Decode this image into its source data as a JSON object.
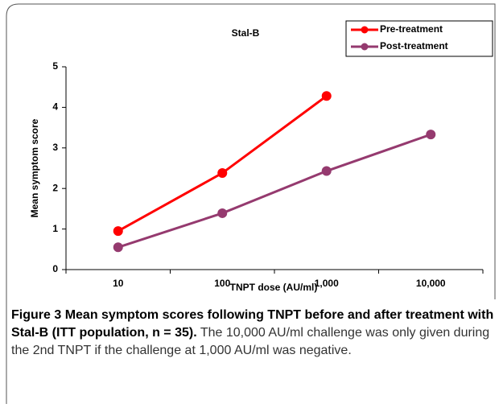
{
  "chart_data": {
    "type": "line",
    "title": "Stal-B",
    "x_label": "TNPT dose (AU/ml)",
    "y_label": "Mean symptom score",
    "categories": [
      "10",
      "100",
      "1,000",
      "10,000"
    ],
    "series": [
      {
        "name": "Pre-treatment",
        "color": "#ff0000",
        "values": [
          0.95,
          2.38,
          4.28,
          null
        ]
      },
      {
        "name": "Post-treatment",
        "color": "#953a6f",
        "values": [
          0.55,
          1.39,
          2.43,
          3.33
        ]
      }
    ],
    "ylim": [
      0,
      5
    ],
    "yticks": [
      0,
      1,
      2,
      3,
      4,
      5
    ],
    "legend": "top-right"
  },
  "caption": {
    "label": "Figure 3",
    "title": "Mean symptom scores following TNPT before and after treatment with Stal-B (ITT population, n = 35).",
    "text": "The 10,000 AU/ml challenge was only given during the 2nd TNPT if the challenge at 1,000 AU/ml was negative."
  }
}
